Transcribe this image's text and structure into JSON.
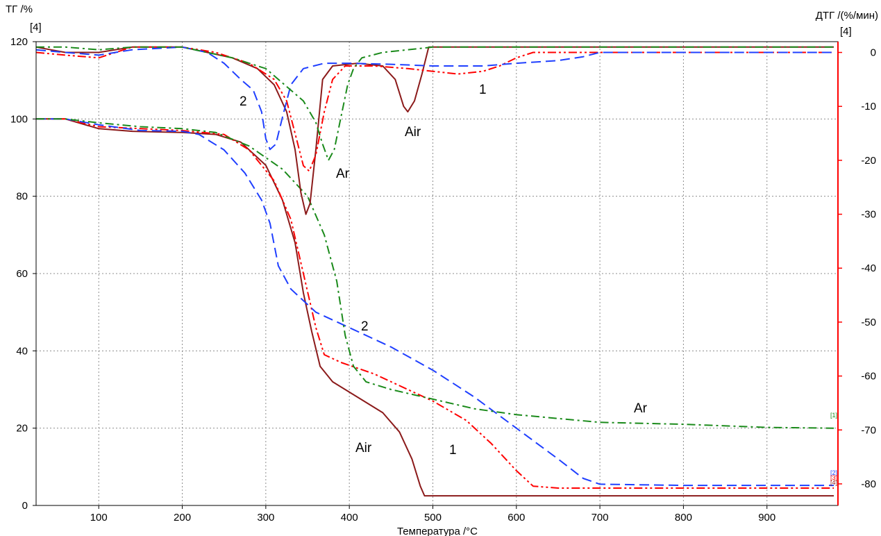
{
  "chart_data": {
    "type": "line",
    "title": "",
    "xlabel": "Температура /°C",
    "ylabel_left": "ТГ /%",
    "ylabel_right": "ДТГ /(%/мин)",
    "left_axis_marker": "[4]",
    "right_axis_marker": "[4]",
    "xlim": [
      25,
      985
    ],
    "ylim_left": [
      0,
      120
    ],
    "ylim_right": [
      -84,
      2
    ],
    "x_ticks": [
      100,
      200,
      300,
      400,
      500,
      600,
      700,
      800,
      900
    ],
    "y_ticks_left": [
      0,
      20,
      40,
      60,
      80,
      100,
      120
    ],
    "y_ticks_right": [
      0,
      -10,
      -20,
      -30,
      -40,
      -50,
      -60,
      -70,
      -80
    ],
    "grid": true,
    "series": [
      {
        "axis": "left",
        "color": "#8b1a1a",
        "dash": "solid",
        "points": [
          [
            25,
            100
          ],
          [
            60,
            100
          ],
          [
            100,
            97.5
          ],
          [
            140,
            96.8
          ],
          [
            200,
            96.5
          ],
          [
            240,
            96
          ],
          [
            270,
            94
          ],
          [
            300,
            88
          ],
          [
            320,
            79
          ],
          [
            335,
            68
          ],
          [
            345,
            55
          ],
          [
            355,
            45
          ],
          [
            365,
            36
          ],
          [
            380,
            32
          ],
          [
            410,
            28
          ],
          [
            440,
            24
          ],
          [
            460,
            19
          ],
          [
            475,
            12
          ],
          [
            485,
            5
          ],
          [
            490,
            2.5
          ],
          [
            600,
            2.5
          ],
          [
            980,
            2.5
          ]
        ]
      },
      {
        "axis": "left",
        "color": "#ff0000",
        "dash": "dashdotdot",
        "points": [
          [
            25,
            100
          ],
          [
            60,
            100
          ],
          [
            100,
            98
          ],
          [
            200,
            97
          ],
          [
            250,
            96
          ],
          [
            280,
            92
          ],
          [
            310,
            84
          ],
          [
            330,
            74
          ],
          [
            345,
            60
          ],
          [
            360,
            46
          ],
          [
            370,
            39
          ],
          [
            390,
            37
          ],
          [
            430,
            34
          ],
          [
            470,
            30
          ],
          [
            500,
            27
          ],
          [
            540,
            22
          ],
          [
            570,
            16
          ],
          [
            600,
            9
          ],
          [
            620,
            5
          ],
          [
            650,
            4.5
          ],
          [
            980,
            4.5
          ]
        ]
      },
      {
        "axis": "left",
        "color": "#1f3fff",
        "dash": "dashed",
        "points": [
          [
            25,
            100
          ],
          [
            60,
            100
          ],
          [
            100,
            98.5
          ],
          [
            150,
            97
          ],
          [
            200,
            96.8
          ],
          [
            220,
            96
          ],
          [
            250,
            92
          ],
          [
            275,
            86
          ],
          [
            295,
            79
          ],
          [
            305,
            73
          ],
          [
            315,
            62
          ],
          [
            330,
            56
          ],
          [
            360,
            50
          ],
          [
            400,
            46
          ],
          [
            450,
            41
          ],
          [
            500,
            35
          ],
          [
            550,
            28
          ],
          [
            600,
            20
          ],
          [
            650,
            12
          ],
          [
            680,
            7
          ],
          [
            700,
            5.5
          ],
          [
            800,
            5.2
          ],
          [
            980,
            5.2
          ]
        ]
      },
      {
        "axis": "left",
        "color": "#1a8a1a",
        "dash": "dashdot",
        "points": [
          [
            25,
            100
          ],
          [
            60,
            100
          ],
          [
            100,
            99
          ],
          [
            150,
            98
          ],
          [
            200,
            97.5
          ],
          [
            240,
            96.5
          ],
          [
            280,
            93
          ],
          [
            320,
            87
          ],
          [
            350,
            80
          ],
          [
            370,
            70
          ],
          [
            385,
            58
          ],
          [
            395,
            44
          ],
          [
            405,
            36
          ],
          [
            420,
            32
          ],
          [
            450,
            30
          ],
          [
            500,
            27.5
          ],
          [
            550,
            25
          ],
          [
            600,
            23.5
          ],
          [
            650,
            22.5
          ],
          [
            700,
            21.5
          ],
          [
            800,
            21
          ],
          [
            900,
            20.2
          ],
          [
            980,
            20
          ]
        ]
      },
      {
        "axis": "right",
        "color": "#8b1a1a",
        "dash": "solid",
        "points": [
          [
            25,
            1
          ],
          [
            60,
            0
          ],
          [
            100,
            0
          ],
          [
            140,
            1
          ],
          [
            200,
            1
          ],
          [
            230,
            0
          ],
          [
            260,
            -1
          ],
          [
            290,
            -3
          ],
          [
            310,
            -6
          ],
          [
            325,
            -11
          ],
          [
            335,
            -18
          ],
          [
            342,
            -26
          ],
          [
            348,
            -30
          ],
          [
            353,
            -28
          ],
          [
            360,
            -18
          ],
          [
            368,
            -5
          ],
          [
            380,
            -2.5
          ],
          [
            410,
            -2
          ],
          [
            440,
            -2.5
          ],
          [
            455,
            -5
          ],
          [
            465,
            -10
          ],
          [
            470,
            -11
          ],
          [
            478,
            -9
          ],
          [
            487,
            -4
          ],
          [
            495,
            1
          ],
          [
            520,
            1
          ],
          [
            600,
            1
          ],
          [
            980,
            1
          ]
        ]
      },
      {
        "axis": "right",
        "color": "#ff0000",
        "dash": "dashdotdot",
        "points": [
          [
            25,
            0
          ],
          [
            60,
            -0.5
          ],
          [
            100,
            -1
          ],
          [
            140,
            1
          ],
          [
            200,
            1
          ],
          [
            240,
            0
          ],
          [
            280,
            -2
          ],
          [
            310,
            -5
          ],
          [
            325,
            -9
          ],
          [
            335,
            -15
          ],
          [
            345,
            -21
          ],
          [
            352,
            -22
          ],
          [
            360,
            -19
          ],
          [
            370,
            -11
          ],
          [
            380,
            -5
          ],
          [
            395,
            -2.5
          ],
          [
            430,
            -2.5
          ],
          [
            470,
            -3
          ],
          [
            500,
            -3.5
          ],
          [
            530,
            -4
          ],
          [
            560,
            -3.5
          ],
          [
            580,
            -2.5
          ],
          [
            600,
            -1
          ],
          [
            620,
            0
          ],
          [
            700,
            0
          ],
          [
            980,
            0
          ]
        ]
      },
      {
        "axis": "right",
        "color": "#1f3fff",
        "dash": "dashed",
        "points": [
          [
            25,
            0.5
          ],
          [
            60,
            0
          ],
          [
            100,
            -0.5
          ],
          [
            140,
            0.5
          ],
          [
            200,
            1
          ],
          [
            230,
            0
          ],
          [
            250,
            -2
          ],
          [
            270,
            -5
          ],
          [
            285,
            -7
          ],
          [
            295,
            -11
          ],
          [
            300,
            -16
          ],
          [
            305,
            -18
          ],
          [
            312,
            -17
          ],
          [
            320,
            -12
          ],
          [
            330,
            -6
          ],
          [
            345,
            -3
          ],
          [
            370,
            -2
          ],
          [
            400,
            -2
          ],
          [
            450,
            -2.2
          ],
          [
            500,
            -2.5
          ],
          [
            560,
            -2.5
          ],
          [
            600,
            -2
          ],
          [
            650,
            -1.5
          ],
          [
            680,
            -0.8
          ],
          [
            700,
            0
          ],
          [
            980,
            0
          ]
        ]
      },
      {
        "axis": "right",
        "color": "#1a8a1a",
        "dash": "dashdot",
        "points": [
          [
            25,
            1
          ],
          [
            60,
            1
          ],
          [
            100,
            0.5
          ],
          [
            140,
            1
          ],
          [
            200,
            1
          ],
          [
            260,
            -1
          ],
          [
            300,
            -3
          ],
          [
            330,
            -7
          ],
          [
            345,
            -9
          ],
          [
            360,
            -13
          ],
          [
            368,
            -17
          ],
          [
            375,
            -20
          ],
          [
            382,
            -18
          ],
          [
            390,
            -12
          ],
          [
            398,
            -6
          ],
          [
            405,
            -3
          ],
          [
            415,
            -1
          ],
          [
            440,
            0
          ],
          [
            500,
            1
          ],
          [
            980,
            1
          ]
        ]
      }
    ],
    "annotations": [
      "1",
      "2",
      "Air",
      "Ar",
      "2",
      "Ar",
      "Air",
      "1",
      "Ar",
      "Air"
    ],
    "end_markers": [
      "[1]",
      "[2]",
      "[3]",
      "[4]"
    ]
  }
}
